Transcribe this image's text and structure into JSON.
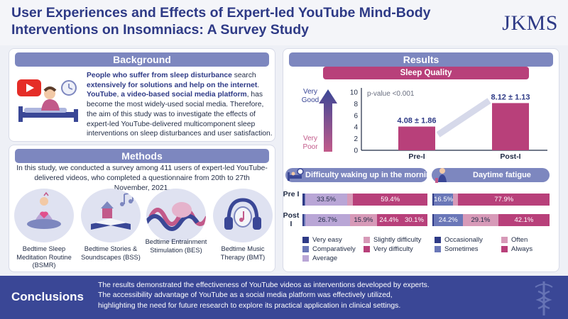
{
  "header": {
    "title": "User Experiences and Effects of Expert-led YouTube Mind-Body Interventions on Insomniacs: A Survey Study",
    "journal": "JKMS"
  },
  "background": {
    "heading": "Background",
    "p1_hl1": "People who suffer from sleep disturbance",
    "p1_mid": " search ",
    "p1_hl2": "extensively for solutions and help on the internet",
    "p1_end": ".",
    "p2_hl1": "YouTube",
    "p2_mid1": ", ",
    "p2_hl2": "a video-based social media platform",
    "p2_end": ", has become the most widely-used social media. Therefore, the aim of this study was to investigate the effects of expert-led YouTube-delivered multicomponent sleep interventions on sleep disturbances and user satisfaction."
  },
  "methods": {
    "heading": "Methods",
    "intro": "In this study, we conducted a survey among 411 users of expert-led YouTube-delivered videos, who completed a questionnaire from 20th to 27th November, 2021.",
    "items": [
      {
        "label": "Bedtime Sleep Meditation Routine (BSMR)",
        "icon": "meditation-icon"
      },
      {
        "label": "Bedtime Stories & Soundscapes (BSS)",
        "icon": "storybook-icon"
      },
      {
        "label": "Bedtime Entrainment Stimulation (BES)",
        "icon": "brainwave-icon"
      },
      {
        "label": "Bedtime Music Therapy (BMT)",
        "icon": "headphones-icon"
      }
    ]
  },
  "results": {
    "heading": "Results",
    "sleep_quality": "Sleep Quality",
    "very_good": "Very Good",
    "very_poor": "Very Poor",
    "difficulty_title": "Difficulty waking up in the morning",
    "fatigue_title": "Daytime fatigue",
    "row_pre": "Pre I",
    "row_post": "Post I"
  },
  "chart_data": [
    {
      "type": "bar",
      "title": "Sleep Quality",
      "categories": [
        "Pre-I",
        "Post-I"
      ],
      "values": [
        4.08,
        8.12
      ],
      "data_labels": [
        "4.08 ± 1.86",
        "8.12 ± 1.13"
      ],
      "annotation": "p-value <0.001",
      "ylim": [
        0,
        10
      ],
      "yticks": [
        "0",
        "2",
        "4",
        "6",
        "8",
        "10"
      ],
      "color": "#b8407a"
    },
    {
      "type": "bar",
      "title": "Difficulty waking up in the morning",
      "stacked": true,
      "orientation": "horizontal",
      "categories": [
        "Pre I",
        "Post I"
      ],
      "series": [
        {
          "name": "Very easy",
          "color": "#2e3a86",
          "values": [
            1.5,
            0.8
          ],
          "labels": [
            "",
            ""
          ]
        },
        {
          "name": "Comparatively",
          "color": "#6a77b8",
          "values": [
            0.8,
            0.8
          ],
          "labels": [
            "",
            ""
          ]
        },
        {
          "name": "Average",
          "color": "#b9a6d6",
          "values": [
            33.5,
            26.7
          ],
          "labels": [
            "33.5%",
            "26.7%"
          ]
        },
        {
          "name": "Slightly difficulty",
          "color": "#d79ab8",
          "values": [
            4.8,
            15.9
          ],
          "labels": [
            "",
            "15.9%"
          ]
        },
        {
          "name": "Very difficulty",
          "color": "#b8407a",
          "values": [
            59.4,
            30.1
          ],
          "labels": [
            "59.4%",
            "30.1%"
          ]
        }
      ],
      "extra_labels": [
        [
          "",
          "24.4%"
        ]
      ]
    },
    {
      "type": "bar",
      "title": "Daytime fatigue",
      "stacked": true,
      "orientation": "horizontal",
      "categories": [
        "Pre I",
        "Post I"
      ],
      "series": [
        {
          "name": "Occasionally",
          "color": "#2e3a86",
          "values": [
            1.2,
            0.9
          ],
          "labels": [
            "",
            ""
          ]
        },
        {
          "name": "Sometimes",
          "color": "#6a77b8",
          "values": [
            16.5,
            24.2
          ],
          "labels": [
            "16.5%",
            "24.2%"
          ]
        },
        {
          "name": "Often",
          "color": "#d79ab8",
          "values": [
            4.4,
            29.1
          ],
          "labels": [
            "",
            "29.1%"
          ]
        },
        {
          "name": "Always",
          "color": "#b8407a",
          "values": [
            77.9,
            42.1
          ],
          "labels": [
            "77.9%",
            "42.1%"
          ]
        }
      ]
    }
  ],
  "conclusions": {
    "heading": "Conclusions",
    "line1": "The results demonstrated the effectiveness of YouTube videos as interventions developed by experts.",
    "line2": "The accessibility advantage of YouTube as a social media platform was effectively utilized,",
    "line3": "highlighting the need for future research to explore its practical application in clinical settings."
  }
}
